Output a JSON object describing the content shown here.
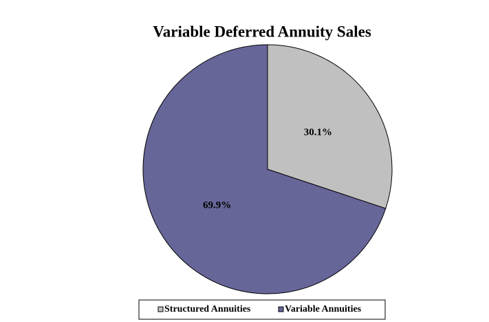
{
  "chart_data": {
    "type": "pie",
    "title": "Variable Deferred Annuity Sales",
    "categories": [
      "Structured Annuities",
      "Variable Annuities"
    ],
    "values": [
      30.1,
      69.9
    ],
    "value_labels": [
      "30.1%",
      "69.9%"
    ],
    "colors": [
      "#c0c0c0",
      "#666699"
    ],
    "legend": "bottom"
  }
}
